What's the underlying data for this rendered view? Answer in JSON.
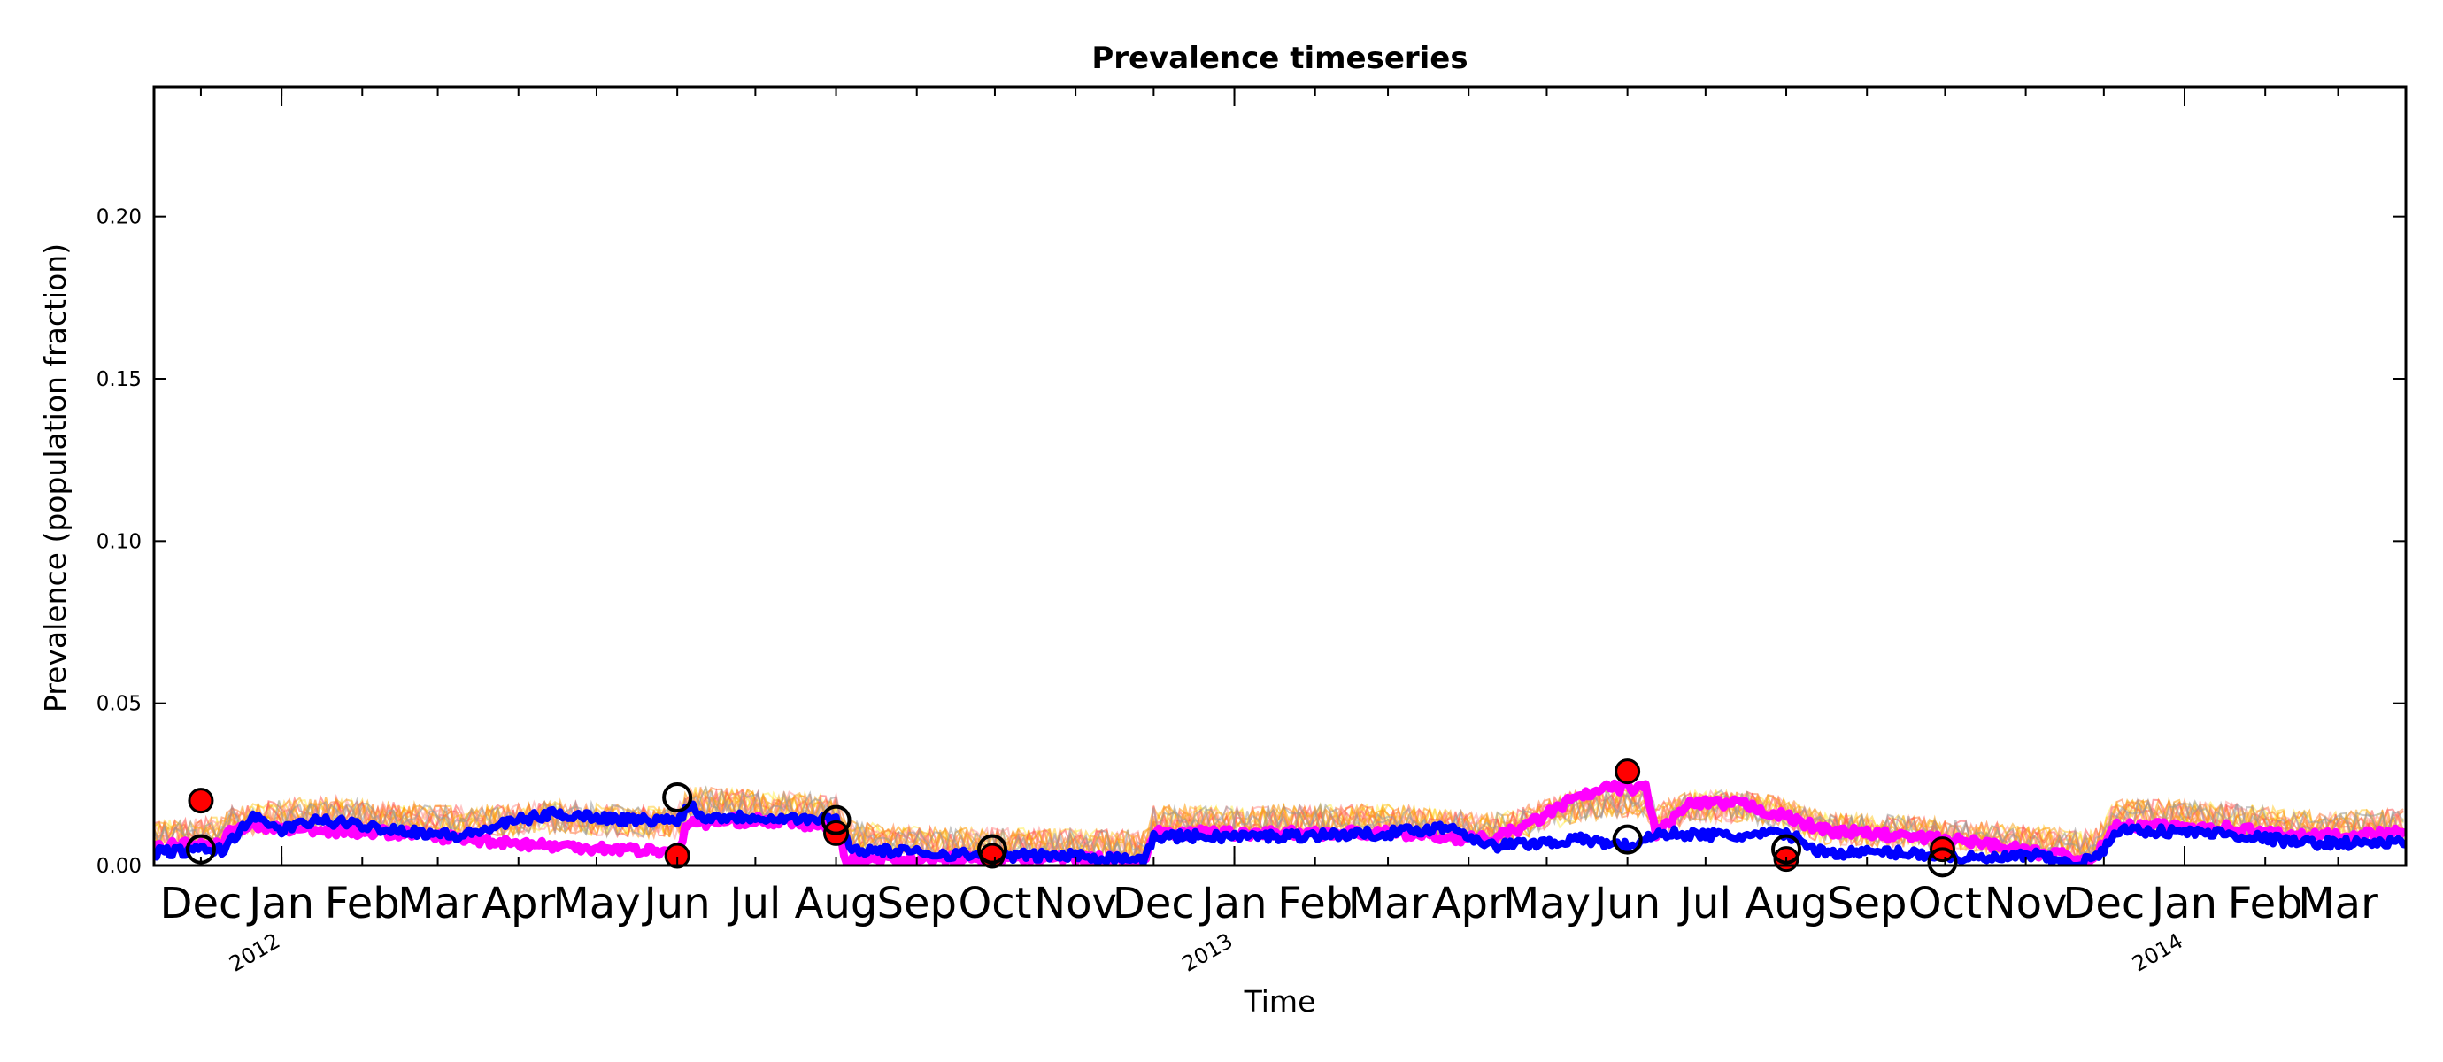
{
  "chart_data": {
    "type": "line",
    "title": "Prevalence timeseries",
    "xlabel": "Time",
    "ylabel": "Prevalence (population fraction)",
    "x_range": [
      "2011-11-13",
      "2014-03-27"
    ],
    "ylim": [
      0,
      0.24
    ],
    "y_ticks": [
      "0.00",
      "0.05",
      "0.10",
      "0.15",
      "0.20"
    ],
    "x_month_ticks": [
      {
        "date": "2011-12-01",
        "label": "Dec"
      },
      {
        "date": "2012-01-01",
        "label": "Jan"
      },
      {
        "date": "2012-02-01",
        "label": "Feb"
      },
      {
        "date": "2012-03-01",
        "label": "Mar"
      },
      {
        "date": "2012-04-01",
        "label": "Apr"
      },
      {
        "date": "2012-05-01",
        "label": "May"
      },
      {
        "date": "2012-06-01",
        "label": "Jun"
      },
      {
        "date": "2012-07-01",
        "label": "Jul"
      },
      {
        "date": "2012-08-01",
        "label": "Aug"
      },
      {
        "date": "2012-09-01",
        "label": "Sep"
      },
      {
        "date": "2012-10-01",
        "label": "Oct"
      },
      {
        "date": "2012-11-01",
        "label": "Nov"
      },
      {
        "date": "2012-12-01",
        "label": "Dec"
      },
      {
        "date": "2013-01-01",
        "label": "Jan"
      },
      {
        "date": "2013-02-01",
        "label": "Feb"
      },
      {
        "date": "2013-03-01",
        "label": "Mar"
      },
      {
        "date": "2013-04-01",
        "label": "Apr"
      },
      {
        "date": "2013-05-01",
        "label": "May"
      },
      {
        "date": "2013-06-01",
        "label": "Jun"
      },
      {
        "date": "2013-07-01",
        "label": "Jul"
      },
      {
        "date": "2013-08-01",
        "label": "Aug"
      },
      {
        "date": "2013-09-01",
        "label": "Sep"
      },
      {
        "date": "2013-10-01",
        "label": "Oct"
      },
      {
        "date": "2013-11-01",
        "label": "Nov"
      },
      {
        "date": "2013-12-01",
        "label": "Dec"
      },
      {
        "date": "2014-01-01",
        "label": "Jan"
      },
      {
        "date": "2014-02-01",
        "label": "Feb"
      },
      {
        "date": "2014-03-01",
        "label": "Mar"
      }
    ],
    "x_year_ticks": [
      {
        "date": "2012-01-01",
        "label": "2012"
      },
      {
        "date": "2013-01-01",
        "label": "2013"
      },
      {
        "date": "2014-01-01",
        "label": "2014"
      }
    ],
    "ensemble_colors": [
      "#ffee55",
      "#ffcc33",
      "#ff9900",
      "#ff7f3f",
      "#ff5555",
      "#ff9999",
      "#f5a623",
      "#999999"
    ],
    "series": [
      {
        "color": "#ff00ff",
        "points": [
          [
            "2011-11-13",
            0.006
          ],
          [
            "2011-12-10",
            0.007
          ],
          [
            "2011-12-12",
            0.012
          ],
          [
            "2012-01-15",
            0.011
          ],
          [
            "2012-02-15",
            0.01
          ],
          [
            "2012-03-15",
            0.008
          ],
          [
            "2012-04-15",
            0.006
          ],
          [
            "2012-05-15",
            0.005
          ],
          [
            "2012-06-01",
            0.004
          ],
          [
            "2012-06-05",
            0.013
          ],
          [
            "2012-07-01",
            0.014
          ],
          [
            "2012-08-01",
            0.012
          ],
          [
            "2012-08-05",
            0.002
          ],
          [
            "2012-09-01",
            0.002
          ],
          [
            "2012-10-01",
            0.002
          ],
          [
            "2012-11-01",
            0.002
          ],
          [
            "2012-11-28",
            0.002
          ],
          [
            "2012-12-01",
            0.01
          ],
          [
            "2013-01-15",
            0.01
          ],
          [
            "2013-03-01",
            0.01
          ],
          [
            "2013-04-10",
            0.008
          ],
          [
            "2013-04-25",
            0.013
          ],
          [
            "2013-05-10",
            0.02
          ],
          [
            "2013-05-25",
            0.024
          ],
          [
            "2013-06-08",
            0.024
          ],
          [
            "2013-06-12",
            0.01
          ],
          [
            "2013-06-25",
            0.019
          ],
          [
            "2013-07-15",
            0.019
          ],
          [
            "2013-08-01",
            0.015
          ],
          [
            "2013-08-15",
            0.011
          ],
          [
            "2013-09-15",
            0.009
          ],
          [
            "2013-10-15",
            0.007
          ],
          [
            "2013-11-05",
            0.004
          ],
          [
            "2013-11-25",
            0.002
          ],
          [
            "2013-12-01",
            0.006
          ],
          [
            "2013-12-05",
            0.012
          ],
          [
            "2014-01-15",
            0.012
          ],
          [
            "2014-02-15",
            0.009
          ],
          [
            "2014-03-27",
            0.01
          ]
        ]
      },
      {
        "color": "#0000ff",
        "points": [
          [
            "2011-11-13",
            0.004
          ],
          [
            "2011-12-10",
            0.005
          ],
          [
            "2011-12-20",
            0.015
          ],
          [
            "2012-01-01",
            0.011
          ],
          [
            "2012-01-15",
            0.014
          ],
          [
            "2012-02-15",
            0.011
          ],
          [
            "2012-03-10",
            0.009
          ],
          [
            "2012-04-01",
            0.014
          ],
          [
            "2012-04-15",
            0.016
          ],
          [
            "2012-05-15",
            0.014
          ],
          [
            "2012-06-01",
            0.014
          ],
          [
            "2012-06-06",
            0.019
          ],
          [
            "2012-06-10",
            0.015
          ],
          [
            "2012-07-01",
            0.015
          ],
          [
            "2012-08-01",
            0.014
          ],
          [
            "2012-08-07",
            0.005
          ],
          [
            "2012-09-01",
            0.004
          ],
          [
            "2012-10-01",
            0.003
          ],
          [
            "2012-11-01",
            0.003
          ],
          [
            "2012-11-28",
            0.002
          ],
          [
            "2012-12-01",
            0.009
          ],
          [
            "2013-01-15",
            0.009
          ],
          [
            "2013-03-01",
            0.01
          ],
          [
            "2013-03-25",
            0.012
          ],
          [
            "2013-04-10",
            0.006
          ],
          [
            "2013-05-15",
            0.008
          ],
          [
            "2013-06-01",
            0.006
          ],
          [
            "2013-06-15",
            0.01
          ],
          [
            "2013-07-15",
            0.009
          ],
          [
            "2013-08-01",
            0.01
          ],
          [
            "2013-08-15",
            0.004
          ],
          [
            "2013-09-15",
            0.004
          ],
          [
            "2013-10-15",
            0.002
          ],
          [
            "2013-11-05",
            0.003
          ],
          [
            "2013-11-20",
            0.0
          ],
          [
            "2013-12-01",
            0.004
          ],
          [
            "2013-12-05",
            0.011
          ],
          [
            "2014-01-15",
            0.01
          ],
          [
            "2014-02-15",
            0.007
          ],
          [
            "2014-03-27",
            0.007
          ]
        ]
      }
    ],
    "observed_points": [
      [
        "2011-12-01",
        0.02
      ],
      [
        "2012-06-01",
        0.003
      ],
      [
        "2012-08-01",
        0.01
      ],
      [
        "2012-09-30",
        0.003
      ],
      [
        "2013-06-01",
        0.029
      ],
      [
        "2013-08-01",
        0.002
      ],
      [
        "2013-09-30",
        0.005
      ]
    ],
    "model_points": [
      [
        "2011-12-01",
        0.005
      ],
      [
        "2012-06-01",
        0.021
      ],
      [
        "2012-08-01",
        0.014
      ],
      [
        "2012-09-30",
        0.005
      ],
      [
        "2013-06-01",
        0.008
      ],
      [
        "2013-08-01",
        0.005
      ],
      [
        "2013-09-30",
        0.001
      ]
    ]
  }
}
